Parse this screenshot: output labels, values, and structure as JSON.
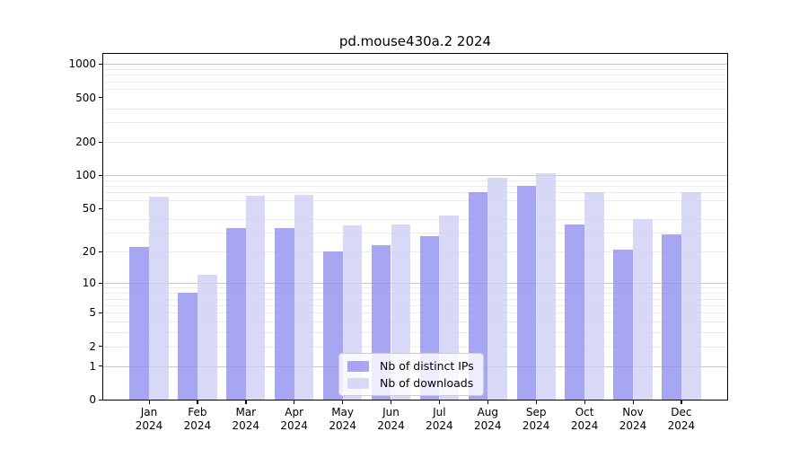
{
  "chart_data": {
    "type": "bar",
    "title": "pd.mouse430a.2 2024",
    "categories": [
      "Jan",
      "Feb",
      "Mar",
      "Apr",
      "May",
      "Jun",
      "Jul",
      "Aug",
      "Sep",
      "Oct",
      "Nov",
      "Dec"
    ],
    "category_year": "2024",
    "series": [
      {
        "name": "Nb of distinct IPs",
        "color": "rgba(144,144,240,0.8)",
        "values": [
          22,
          8,
          33,
          33,
          20,
          23,
          28,
          70,
          81,
          36,
          21,
          29
        ]
      },
      {
        "name": "Nb of downloads",
        "color": "rgba(206,206,245,0.8)",
        "values": [
          64,
          12,
          65,
          67,
          35,
          36,
          43,
          96,
          105,
          70,
          40,
          70
        ]
      }
    ],
    "yscale": "log1p",
    "ylim": [
      0,
      1230
    ],
    "yticks": [
      0,
      1,
      2,
      5,
      10,
      20,
      50,
      100,
      200,
      500,
      1000
    ],
    "major_gridlines": [
      1,
      10,
      100,
      1000
    ],
    "minor_gridlines": [
      2,
      3,
      4,
      5,
      6,
      7,
      8,
      9,
      20,
      30,
      40,
      60,
      70,
      80,
      90,
      200,
      300,
      400,
      600,
      700,
      800,
      900
    ],
    "grid": true,
    "legend_position": "bottom-center",
    "colors": {
      "axis": "#000000",
      "major_grid": "#c9c9c9",
      "minor_grid": "#ececec",
      "background": "#ffffff"
    }
  }
}
